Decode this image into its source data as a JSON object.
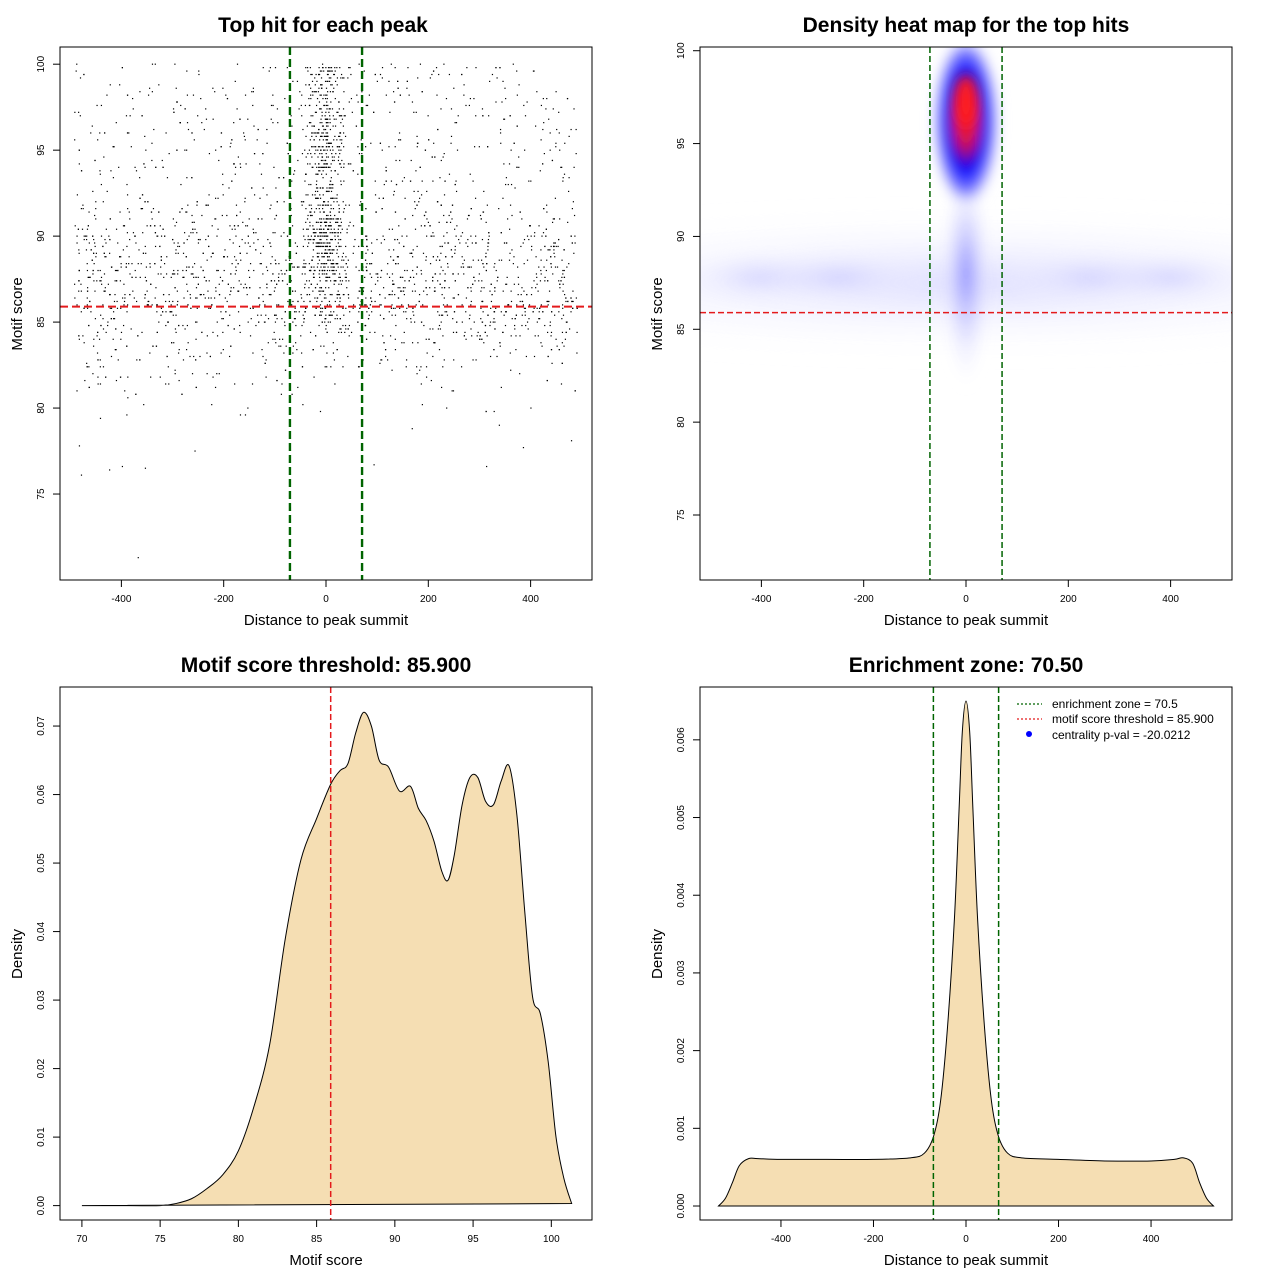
{
  "chart_data": [
    {
      "type": "scatter",
      "title": "Top hit for each peak",
      "xlabel": "Distance to peak summit",
      "ylabel": "Motif score",
      "xlim": [
        -520,
        520
      ],
      "ylim": [
        70,
        101
      ],
      "xticks": [
        -400,
        -200,
        0,
        200,
        400
      ],
      "yticks": [
        75,
        80,
        85,
        90,
        95,
        100
      ],
      "hlines": [
        85.9
      ],
      "vlines": [
        -70.5,
        70.5
      ],
      "points_description_summary": {
        "background_score_range": [
          79,
          100
        ],
        "background_score_mode": 87.5,
        "central_cluster_x_range": [
          -70,
          70
        ],
        "central_cluster_score_range": [
          83,
          100
        ],
        "outlier_points": [
          {
            "x": -482,
            "y": 77.8
          },
          {
            "x": -478,
            "y": 76.1
          },
          {
            "x": -423,
            "y": 76.4
          },
          {
            "x": -398,
            "y": 76.6
          },
          {
            "x": -353,
            "y": 76.5
          },
          {
            "x": -367,
            "y": 71.3
          },
          {
            "x": -256,
            "y": 77.5
          },
          {
            "x": 94,
            "y": 76.7
          },
          {
            "x": 314,
            "y": 76.6
          },
          {
            "x": 386,
            "y": 77.7
          },
          {
            "x": 480,
            "y": 78.1
          }
        ]
      },
      "grid": false
    },
    {
      "type": "heatmap",
      "title": "Density heat map for the top hits",
      "xlabel": "Distance to peak summit",
      "ylabel": "Motif score",
      "xlim": [
        -520,
        520
      ],
      "ylim": [
        71.5,
        100.2
      ],
      "xticks": [
        -400,
        -200,
        0,
        200,
        400
      ],
      "yticks": [
        75,
        80,
        85,
        90,
        95,
        100
      ],
      "hlines": [
        85.9
      ],
      "vlines": [
        -70.5,
        70.5
      ],
      "density_peak": {
        "x": 0,
        "y": 97.3
      },
      "color_scale": [
        "#ffffff",
        "#0000ff",
        "#ff0000"
      ]
    },
    {
      "type": "area",
      "title": "Motif score threshold: 85.900",
      "xlabel": "Motif score",
      "ylabel": "Density",
      "xlim": [
        68.6,
        102.6
      ],
      "ylim": [
        -0.0021,
        0.0757
      ],
      "xticks": [
        70,
        75,
        80,
        85,
        90,
        95,
        100
      ],
      "yticks": [
        0.0,
        0.01,
        0.02,
        0.03,
        0.04,
        0.05,
        0.06,
        0.07
      ],
      "ytick_labels": [
        "0.00",
        "0.01",
        "0.02",
        "0.03",
        "0.04",
        "0.05",
        "0.06",
        "0.07"
      ],
      "vlines": [
        85.9
      ],
      "x": [
        70,
        73,
        75,
        76,
        77,
        78,
        79,
        80,
        81,
        82,
        83,
        84,
        85,
        85.9,
        86.5,
        87,
        87.5,
        88,
        88.5,
        89,
        89.6,
        90.3,
        91,
        91.5,
        92,
        92.5,
        93,
        93.4,
        93.8,
        94.3,
        94.8,
        95.3,
        95.8,
        96.3,
        96.8,
        97.3,
        97.8,
        98.3,
        98.8,
        99.3,
        99.8,
        100.3,
        100.8,
        101.3
      ],
      "y": [
        0.0,
        0.0,
        0.0,
        0.0003,
        0.001,
        0.0025,
        0.0045,
        0.008,
        0.0145,
        0.0235,
        0.039,
        0.0505,
        0.0565,
        0.0615,
        0.0635,
        0.0645,
        0.069,
        0.072,
        0.07,
        0.065,
        0.064,
        0.0605,
        0.0612,
        0.058,
        0.0562,
        0.0532,
        0.0488,
        0.0475,
        0.0512,
        0.0585,
        0.0625,
        0.0625,
        0.059,
        0.0585,
        0.062,
        0.0642,
        0.057,
        0.043,
        0.0305,
        0.028,
        0.021,
        0.01,
        0.004,
        0.0003
      ],
      "fill_color": "#f5deb3"
    },
    {
      "type": "area",
      "title": "Enrichment zone: 70.50",
      "xlabel": "Distance to peak summit",
      "ylabel": "Density",
      "xlim": [
        -575,
        575
      ],
      "ylim": [
        -0.00018,
        0.00668
      ],
      "xticks": [
        -400,
        -200,
        0,
        200,
        400
      ],
      "yticks": [
        0.0,
        0.001,
        0.002,
        0.003,
        0.004,
        0.005,
        0.006
      ],
      "ytick_labels": [
        "0.000",
        "0.001",
        "0.002",
        "0.003",
        "0.004",
        "0.005",
        "0.006"
      ],
      "vlines": [
        -70.5,
        70.5
      ],
      "x": [
        -535,
        -520,
        -505,
        -490,
        -470,
        -450,
        -400,
        -300,
        -200,
        -120,
        -90,
        -70,
        -55,
        -40,
        -25,
        -15,
        -8,
        0,
        8,
        15,
        25,
        40,
        55,
        70,
        90,
        120,
        200,
        300,
        400,
        450,
        470,
        490,
        505,
        520,
        535
      ],
      "y": [
        0.0,
        0.0001,
        0.0003,
        0.00052,
        0.00061,
        0.00061,
        0.0006,
        0.0006,
        0.0006,
        0.00062,
        0.00068,
        0.0009,
        0.00135,
        0.0023,
        0.0037,
        0.0051,
        0.0061,
        0.0065,
        0.0061,
        0.0051,
        0.0037,
        0.0023,
        0.00135,
        0.0009,
        0.00068,
        0.00062,
        0.0006,
        0.00058,
        0.00058,
        0.0006,
        0.00062,
        0.00055,
        0.0003,
        0.0001,
        0.0
      ],
      "fill_color": "#f5deb3",
      "legend": {
        "position": "top-right",
        "entries": [
          {
            "label": "enrichment zone = 70.5",
            "style": "dotted-line",
            "color": "#006400"
          },
          {
            "label": "motif score threshold = 85.900",
            "style": "dotted-line",
            "color": "#e41a1c"
          },
          {
            "label": "centrality p-val = -20.0212",
            "style": "point",
            "color": "#0000ff"
          }
        ]
      }
    }
  ],
  "colors": {
    "threshold_line": "#e41a1c",
    "zone_line": "#006400",
    "fill": "#f5deb3",
    "points": "#000000"
  }
}
